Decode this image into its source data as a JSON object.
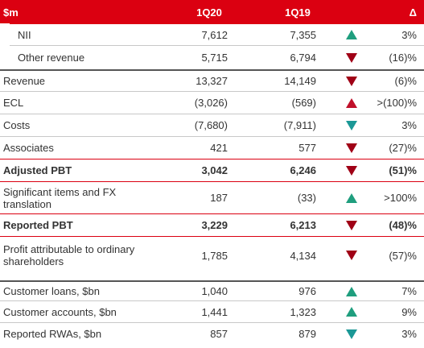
{
  "table": {
    "header": [
      "$m",
      "1Q20",
      "1Q19",
      "Δ"
    ],
    "rows": [
      [
        "NII",
        "7,612",
        "7,355",
        "3%"
      ],
      [
        "Other revenue",
        "5,715",
        "6,794",
        "(16)%"
      ],
      [
        "Revenue",
        "13,327",
        "14,149",
        "(6)%"
      ],
      [
        "ECL",
        "(3,026)",
        "(569)",
        ">(100)%"
      ],
      [
        "Costs",
        "(7,680)",
        "(7,911)",
        "3%"
      ],
      [
        "Associates",
        "421",
        "577",
        "(27)%"
      ],
      [
        "Adjusted PBT",
        "3,042",
        "6,246",
        "(51)%"
      ],
      [
        "Significant items and FX translation",
        "187",
        "(33)",
        ">100%"
      ],
      [
        "Reported PBT",
        "3,229",
        "6,213",
        "(48)%"
      ],
      [
        "Profit attributable to ordinary shareholders",
        "1,785",
        "4,134",
        "(57)%"
      ],
      [
        "Customer loans, $bn",
        "1,040",
        "976",
        "7%"
      ],
      [
        "Customer accounts, $bn",
        "1,441",
        "1,323",
        "9%"
      ],
      [
        "Reported RWAs, $bn",
        "857",
        "879",
        "3%"
      ]
    ]
  }
}
